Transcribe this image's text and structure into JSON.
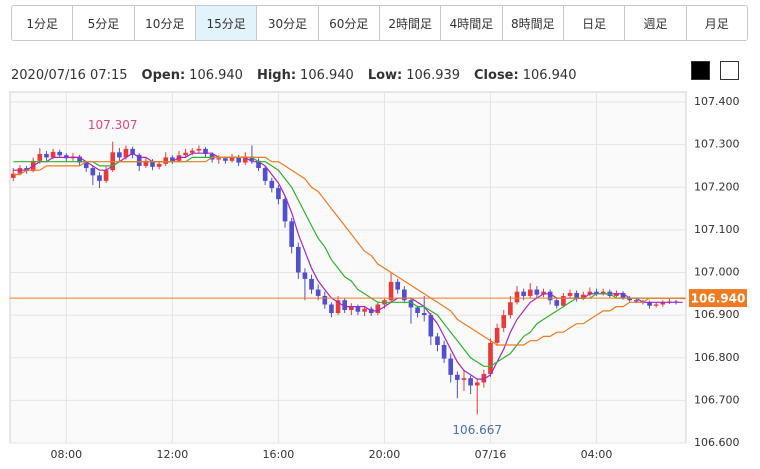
{
  "toolbar": {
    "buttons": [
      "1分足",
      "5分足",
      "10分足",
      "15分足",
      "30分足",
      "60分足",
      "2時間足",
      "4時間足",
      "8時間足",
      "日足",
      "週足",
      "月足"
    ],
    "selected": 3
  },
  "info": {
    "datetime": "2020/07/16 07:15",
    "fields": [
      {
        "label": "Open:",
        "value": "106.940"
      },
      {
        "label": "High:",
        "value": "106.940"
      },
      {
        "label": "Low:",
        "value": "106.939"
      },
      {
        "label": "Close:",
        "value": "106.940"
      }
    ]
  },
  "chart_data": {
    "type": "candlestick",
    "categories": [
      null,
      null,
      null,
      null,
      null,
      null,
      null,
      null,
      "08:00",
      null,
      null,
      null,
      null,
      null,
      null,
      null,
      null,
      null,
      null,
      null,
      null,
      null,
      null,
      null,
      "12:00",
      null,
      null,
      null,
      null,
      null,
      null,
      null,
      null,
      null,
      null,
      null,
      null,
      null,
      null,
      null,
      "16:00",
      null,
      null,
      null,
      null,
      null,
      null,
      null,
      null,
      null,
      null,
      null,
      null,
      null,
      null,
      null,
      "20:00",
      null,
      null,
      null,
      null,
      null,
      null,
      null,
      null,
      null,
      null,
      null,
      null,
      null,
      null,
      null,
      "07/16",
      null,
      null,
      null,
      null,
      null,
      null,
      null,
      null,
      null,
      null,
      null,
      null,
      null,
      null,
      null,
      "04:00",
      null,
      null,
      null,
      null,
      null,
      null,
      null,
      null,
      null,
      null,
      null,
      null,
      null
    ],
    "values": [
      [
        107.222,
        107.245,
        107.215,
        107.232
      ],
      [
        107.232,
        107.252,
        107.228,
        107.245
      ],
      [
        107.245,
        107.25,
        107.232,
        107.238
      ],
      [
        107.238,
        107.27,
        107.235,
        107.262
      ],
      [
        107.262,
        107.292,
        107.255,
        107.278
      ],
      [
        107.278,
        107.285,
        107.262,
        107.27
      ],
      [
        107.27,
        107.29,
        107.266,
        107.283
      ],
      [
        107.283,
        107.288,
        107.27,
        107.275
      ],
      [
        107.275,
        107.28,
        107.26,
        107.268
      ],
      [
        107.268,
        107.28,
        107.262,
        107.272
      ],
      [
        107.272,
        107.276,
        107.25,
        107.258
      ],
      [
        107.258,
        107.262,
        107.236,
        107.245
      ],
      [
        107.245,
        107.25,
        107.205,
        107.228
      ],
      [
        107.228,
        107.235,
        107.198,
        107.215
      ],
      [
        107.215,
        107.248,
        107.21,
        107.24
      ],
      [
        107.24,
        107.307,
        107.236,
        107.282
      ],
      [
        107.282,
        107.292,
        107.262,
        107.27
      ],
      [
        107.27,
        107.298,
        107.265,
        107.29
      ],
      [
        107.29,
        107.295,
        107.268,
        107.276
      ],
      [
        107.276,
        107.28,
        107.238,
        107.25
      ],
      [
        107.25,
        107.27,
        107.245,
        107.262
      ],
      [
        107.262,
        107.266,
        107.24,
        107.248
      ],
      [
        107.248,
        107.262,
        107.242,
        107.255
      ],
      [
        107.255,
        107.282,
        107.25,
        107.27
      ],
      [
        107.27,
        107.275,
        107.255,
        107.262
      ],
      [
        107.262,
        107.285,
        107.258,
        107.275
      ],
      [
        107.275,
        107.29,
        107.27,
        107.281
      ],
      [
        107.281,
        107.292,
        107.275,
        107.286
      ],
      [
        107.286,
        107.298,
        107.28,
        107.29
      ],
      [
        107.29,
        107.294,
        107.27,
        107.278
      ],
      [
        107.278,
        107.282,
        107.258,
        107.265
      ],
      [
        107.265,
        107.275,
        107.255,
        107.268
      ],
      [
        107.268,
        107.272,
        107.255,
        107.262
      ],
      [
        107.262,
        107.278,
        107.258,
        107.27
      ],
      [
        107.27,
        107.276,
        107.25,
        107.258
      ],
      [
        107.258,
        107.282,
        107.252,
        107.272
      ],
      [
        107.272,
        107.298,
        107.255,
        107.262
      ],
      [
        107.262,
        107.268,
        107.238,
        107.245
      ],
      [
        107.245,
        107.25,
        107.205,
        107.215
      ],
      [
        107.215,
        107.222,
        107.188,
        107.198
      ],
      [
        107.198,
        107.205,
        107.16,
        107.172
      ],
      [
        107.172,
        107.18,
        107.105,
        107.12
      ],
      [
        107.12,
        107.128,
        107.045,
        107.06
      ],
      [
        107.06,
        107.07,
        106.985,
        107.0
      ],
      [
        107.0,
        107.01,
        106.935,
        106.985
      ],
      [
        106.985,
        106.995,
        106.95,
        106.96
      ],
      [
        106.96,
        106.972,
        106.935,
        106.945
      ],
      [
        106.945,
        106.955,
        106.915,
        106.925
      ],
      [
        106.925,
        106.93,
        106.895,
        106.905
      ],
      [
        106.905,
        106.945,
        106.9,
        106.935
      ],
      [
        106.935,
        106.94,
        106.905,
        106.912
      ],
      [
        106.912,
        106.928,
        106.9,
        106.92
      ],
      [
        106.92,
        106.925,
        106.9,
        106.908
      ],
      [
        106.908,
        106.922,
        106.898,
        106.915
      ],
      [
        106.915,
        106.92,
        106.898,
        106.905
      ],
      [
        106.905,
        106.932,
        106.9,
        106.925
      ],
      [
        106.925,
        106.94,
        106.915,
        106.935
      ],
      [
        106.935,
        107.0,
        106.93,
        106.978
      ],
      [
        106.978,
        106.985,
        106.95,
        106.96
      ],
      [
        106.96,
        106.968,
        106.928,
        106.935
      ],
      [
        106.935,
        106.94,
        106.88,
        106.918
      ],
      [
        106.918,
        106.922,
        106.895,
        106.905
      ],
      [
        106.905,
        106.945,
        106.885,
        106.9
      ],
      [
        106.9,
        106.905,
        106.83,
        106.85
      ],
      [
        106.85,
        106.858,
        106.815,
        106.83
      ],
      [
        106.83,
        106.84,
        106.788,
        106.798
      ],
      [
        106.798,
        106.81,
        106.742,
        106.76
      ],
      [
        106.76,
        106.768,
        106.705,
        106.748
      ],
      [
        106.748,
        106.77,
        106.722,
        106.752
      ],
      [
        106.752,
        106.758,
        106.715,
        106.735
      ],
      [
        106.735,
        106.752,
        106.667,
        106.742
      ],
      [
        106.742,
        106.772,
        106.73,
        106.762
      ],
      [
        106.762,
        106.845,
        106.755,
        106.835
      ],
      [
        106.835,
        106.88,
        106.828,
        106.87
      ],
      [
        106.87,
        106.912,
        106.86,
        106.9
      ],
      [
        106.9,
        106.945,
        106.892,
        106.93
      ],
      [
        106.93,
        106.968,
        106.925,
        106.955
      ],
      [
        106.955,
        106.962,
        106.935,
        106.945
      ],
      [
        106.945,
        106.975,
        106.94,
        106.96
      ],
      [
        106.96,
        106.968,
        106.94,
        106.948
      ],
      [
        106.948,
        106.962,
        106.942,
        106.955
      ],
      [
        106.955,
        106.96,
        106.925,
        106.935
      ],
      [
        106.935,
        106.94,
        106.915,
        106.922
      ],
      [
        106.922,
        106.952,
        106.918,
        106.945
      ],
      [
        106.945,
        106.96,
        106.94,
        106.952
      ],
      [
        106.952,
        106.958,
        106.932,
        106.938
      ],
      [
        106.938,
        106.955,
        106.935,
        106.948
      ],
      [
        106.948,
        106.965,
        106.944,
        106.955
      ],
      [
        106.955,
        106.962,
        106.945,
        106.95
      ],
      [
        106.95,
        106.962,
        106.946,
        106.955
      ],
      [
        106.955,
        106.96,
        106.94,
        106.945
      ],
      [
        106.945,
        106.958,
        106.942,
        106.952
      ],
      [
        106.952,
        106.956,
        106.936,
        106.94
      ],
      [
        106.94,
        106.945,
        106.93,
        106.935
      ],
      [
        106.935,
        106.94,
        106.928,
        106.932
      ],
      [
        106.932,
        106.936,
        106.925,
        106.93
      ],
      [
        106.93,
        106.934,
        106.915,
        106.922
      ],
      [
        106.922,
        106.93,
        106.918,
        106.925
      ],
      [
        106.925,
        106.935,
        106.92,
        106.93
      ],
      [
        106.93,
        106.938,
        106.926,
        106.932
      ],
      [
        106.932,
        106.936,
        106.925,
        106.93
      ],
      [
        106.94,
        106.94,
        106.939,
        106.94
      ]
    ],
    "up_color": "#e83a3a",
    "down_color": "#4f4fcf",
    "lines": [
      {
        "color": "#a428c8",
        "values": [
          107.24,
          107.24,
          107.24,
          107.25,
          107.26,
          107.26,
          107.27,
          107.27,
          107.27,
          107.27,
          107.27,
          107.26,
          107.25,
          107.24,
          107.24,
          107.25,
          107.26,
          107.27,
          107.28,
          107.27,
          107.27,
          107.26,
          107.26,
          107.26,
          107.26,
          107.27,
          107.27,
          107.28,
          107.28,
          107.28,
          107.28,
          107.27,
          107.27,
          107.27,
          107.27,
          107.27,
          107.26,
          107.26,
          107.25,
          107.23,
          107.21,
          107.18,
          107.14,
          107.09,
          107.05,
          107.01,
          106.98,
          106.96,
          106.94,
          106.93,
          106.92,
          106.92,
          106.92,
          106.92,
          106.91,
          106.91,
          106.92,
          106.93,
          106.94,
          106.94,
          106.94,
          106.93,
          106.92,
          106.9,
          106.88,
          106.85,
          106.82,
          106.79,
          106.77,
          106.76,
          106.75,
          106.75,
          106.76,
          106.79,
          106.82,
          106.86,
          106.89,
          106.91,
          106.93,
          106.94,
          106.95,
          106.95,
          106.94,
          106.94,
          106.94,
          106.94,
          106.94,
          106.95,
          106.95,
          106.95,
          106.95,
          106.95,
          106.95,
          106.94,
          106.94,
          106.93,
          106.93,
          106.93,
          106.93,
          106.93,
          106.93,
          106.93
        ]
      },
      {
        "color": "#2cb52c",
        "values": [
          107.26,
          107.26,
          107.26,
          107.26,
          107.26,
          107.26,
          107.26,
          107.26,
          107.26,
          107.26,
          107.26,
          107.26,
          107.26,
          107.25,
          107.25,
          107.25,
          107.26,
          107.26,
          107.26,
          107.26,
          107.26,
          107.26,
          107.26,
          107.26,
          107.26,
          107.26,
          107.26,
          107.27,
          107.27,
          107.27,
          107.27,
          107.27,
          107.27,
          107.27,
          107.27,
          107.27,
          107.27,
          107.26,
          107.26,
          107.25,
          107.24,
          107.22,
          107.2,
          107.17,
          107.14,
          107.11,
          107.08,
          107.06,
          107.03,
          107.01,
          106.99,
          106.98,
          106.96,
          106.95,
          106.94,
          106.93,
          106.93,
          106.93,
          106.93,
          106.93,
          106.93,
          106.92,
          106.92,
          106.91,
          106.9,
          106.88,
          106.86,
          106.84,
          106.82,
          106.8,
          106.79,
          106.78,
          106.78,
          106.79,
          106.8,
          106.81,
          106.83,
          106.85,
          106.86,
          106.88,
          106.89,
          106.9,
          106.91,
          106.92,
          106.93,
          106.94,
          106.94,
          106.94,
          106.95,
          106.95,
          106.95,
          106.94,
          106.94,
          106.94,
          106.94,
          106.94,
          106.94,
          106.94,
          106.94,
          106.94,
          106.94,
          106.94
        ]
      },
      {
        "color": "#f07a22",
        "values": [
          107.23,
          107.23,
          107.24,
          107.24,
          107.24,
          107.25,
          107.25,
          107.25,
          107.25,
          107.25,
          107.25,
          107.26,
          107.26,
          107.26,
          107.26,
          107.26,
          107.26,
          107.26,
          107.26,
          107.26,
          107.26,
          107.26,
          107.26,
          107.26,
          107.26,
          107.26,
          107.26,
          107.26,
          107.26,
          107.26,
          107.27,
          107.27,
          107.27,
          107.27,
          107.27,
          107.27,
          107.27,
          107.27,
          107.27,
          107.26,
          107.26,
          107.25,
          107.24,
          107.23,
          107.22,
          107.2,
          107.19,
          107.17,
          107.15,
          107.13,
          107.11,
          107.09,
          107.07,
          107.05,
          107.04,
          107.02,
          107.01,
          107.0,
          106.99,
          106.98,
          106.97,
          106.96,
          106.95,
          106.94,
          106.93,
          106.92,
          106.91,
          106.89,
          106.88,
          106.87,
          106.86,
          106.85,
          106.84,
          106.83,
          106.83,
          106.83,
          106.83,
          106.83,
          106.84,
          106.84,
          106.85,
          106.85,
          106.86,
          106.86,
          106.87,
          106.88,
          106.88,
          106.89,
          106.9,
          106.91,
          106.91,
          106.92,
          106.92,
          106.93,
          106.93,
          106.93,
          106.94,
          106.94,
          106.94,
          106.94,
          106.94,
          106.94
        ]
      }
    ],
    "last_price": {
      "value": 106.94,
      "label": "106.940"
    },
    "last_price_color": "#f07a22",
    "high_label_color": "#e0487a",
    "low_label_color": "#4a6fb5",
    "ylim": [
      106.6,
      107.4
    ],
    "yticks": [
      {
        "value": 106.6,
        "label": "106.600"
      },
      {
        "value": 106.7,
        "label": "106.700"
      },
      {
        "value": 106.8,
        "label": "106.800"
      },
      {
        "value": 106.9,
        "label": "106.900"
      },
      {
        "value": 107.0,
        "label": "107.000"
      },
      {
        "value": 107.1,
        "label": "107.100"
      },
      {
        "value": 107.2,
        "label": "107.200"
      },
      {
        "value": 107.3,
        "label": "107.300"
      },
      {
        "value": 107.4,
        "label": "107.400"
      }
    ],
    "grid": true
  }
}
